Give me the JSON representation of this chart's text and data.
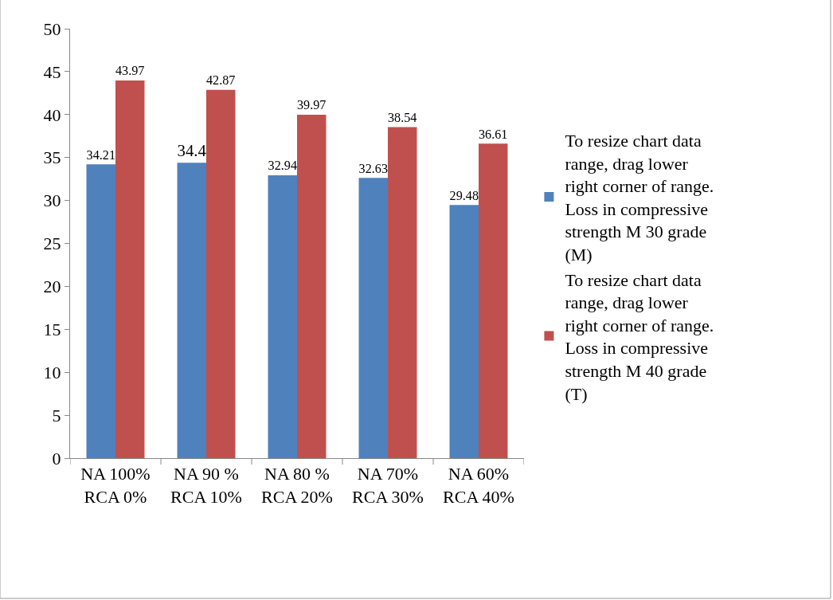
{
  "chart_data": {
    "type": "bar",
    "categories": [
      "NA 100% RCA 0%",
      "NA 90 % RCA 10%",
      "NA 80 % RCA 20%",
      "NA 70% RCA 30%",
      "NA 60% RCA 40%"
    ],
    "series": [
      {
        "name": "To resize chart data range, drag lower right corner of range. Loss in compressive strength M 30 grade (M)",
        "color": "#4f81bd",
        "values": [
          34.21,
          34.4,
          32.94,
          32.63,
          29.48
        ]
      },
      {
        "name": "To resize chart data range, drag lower right corner of range. Loss in compressive strength M 40 grade (T)",
        "color": "#c0504d",
        "values": [
          43.97,
          42.87,
          39.97,
          38.54,
          36.61
        ]
      }
    ],
    "ylim": [
      0,
      50
    ],
    "yticks": [
      0,
      5,
      10,
      15,
      20,
      25,
      30,
      35,
      40,
      45,
      50
    ],
    "data_labels": true,
    "legend": "right",
    "grid": false
  }
}
